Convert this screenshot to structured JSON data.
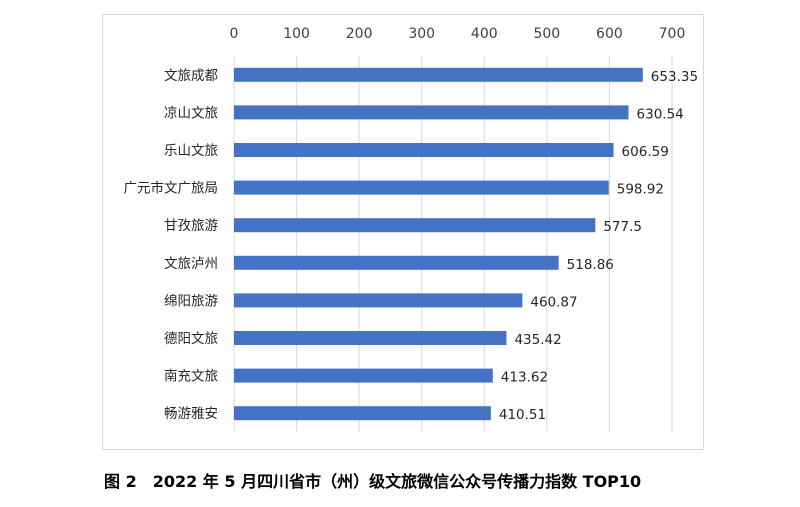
{
  "chart_data": {
    "type": "bar",
    "orientation": "horizontal",
    "x_axis_position": "top",
    "categories": [
      "文旅成都",
      "凉山文旅",
      "乐山文旅",
      "广元市文广旅局",
      "甘孜旅游",
      "文旅泸州",
      "绵阳旅游",
      "德阳文旅",
      "南充文旅",
      "畅游雅安"
    ],
    "values": [
      653.35,
      630.54,
      606.59,
      598.92,
      577.5,
      518.86,
      460.87,
      435.42,
      413.62,
      410.51
    ],
    "value_labels": [
      "653.35",
      "630.54",
      "606.59",
      "598.92",
      "577.5",
      "518.86",
      "460.87",
      "435.42",
      "413.62",
      "410.51"
    ],
    "xlim": [
      0,
      700
    ],
    "xticks": [
      0,
      100,
      200,
      300,
      400,
      500,
      600,
      700
    ],
    "grid": true,
    "bar_color": "#4472c4",
    "gridline_color": "#d9d9d9"
  },
  "caption": "图 2　2022 年 5 月四川省市（州）级文旅微信公众号传播力指数 TOP10"
}
